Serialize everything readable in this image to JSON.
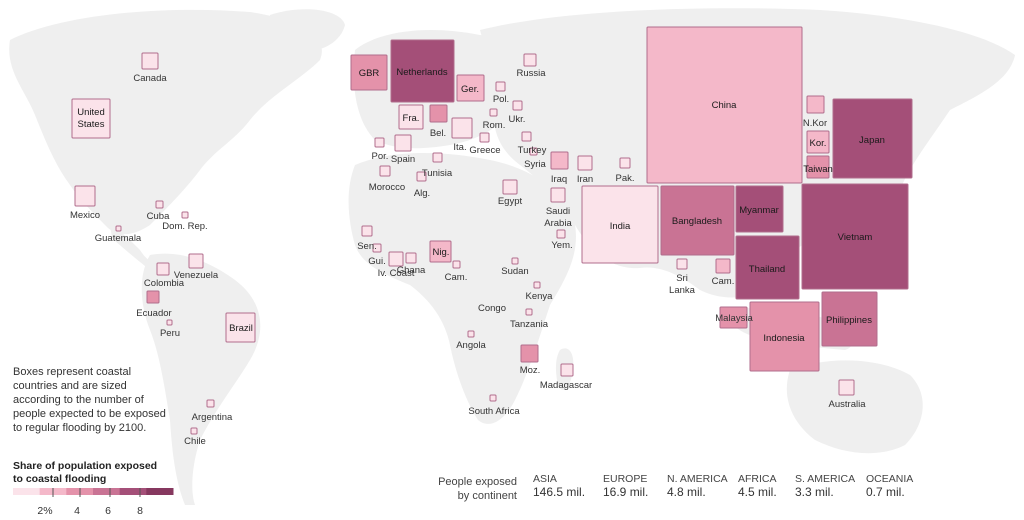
{
  "note": "Boxes represent coastal countries and are sized according to the number of people expected to be exposed to regular flooding by 2100.",
  "legend": {
    "title_line1": "Share of population exposed",
    "title_line2": "to coastal flooding",
    "ticks": [
      "2%",
      "4",
      "6",
      "8"
    ],
    "colors": [
      "#fbe3ea",
      "#f4b8c9",
      "#e492aa",
      "#c97394",
      "#a44f78",
      "#86385f"
    ]
  },
  "continents_label_line1": "People exposed",
  "continents_label_line2": "by continent",
  "continents": [
    {
      "name": "ASIA",
      "value": "146.5 mil."
    },
    {
      "name": "EUROPE",
      "value": "16.9 mil."
    },
    {
      "name": "N. AMERICA",
      "value": "4.8 mil."
    },
    {
      "name": "AFRICA",
      "value": "4.5 mil."
    },
    {
      "name": "S. AMERICA",
      "value": "3.3 mil."
    },
    {
      "name": "OCEANIA",
      "value": "0.7 mil."
    }
  ],
  "countries": [
    {
      "name": "China",
      "share_level": 1
    },
    {
      "name": "India",
      "share_level": 0
    },
    {
      "name": "Bangladesh",
      "share_level": 3
    },
    {
      "name": "Myanmar",
      "share_level": 4
    },
    {
      "name": "Thailand",
      "share_level": 4
    },
    {
      "name": "Vietnam",
      "share_level": 4
    },
    {
      "name": "Japan",
      "share_level": 4
    },
    {
      "name": "Indonesia",
      "share_level": 2
    },
    {
      "name": "Philippines",
      "share_level": 3
    },
    {
      "name": "Netherlands",
      "share_level": 4
    },
    {
      "name": "GBR",
      "share_level": 2
    },
    {
      "name": "Ger.",
      "share_level": 1
    },
    {
      "name": "Fra.",
      "share_level": 0
    },
    {
      "name": "Bel.",
      "share_level": 2
    },
    {
      "name": "Ita.",
      "share_level": 0
    },
    {
      "name": "Nig.",
      "share_level": 1
    },
    {
      "name": "Brazil",
      "share_level": 0
    },
    {
      "name": "United States",
      "share_level": 0
    },
    {
      "name": "Malaysia",
      "share_level": 2
    },
    {
      "name": "Kor.",
      "share_level": 1
    },
    {
      "name": "Taiwan",
      "share_level": 2
    },
    {
      "name": "N.Kor",
      "share_level": 1
    },
    {
      "name": "Cam.",
      "share_level": 1
    },
    {
      "name": "Egypt",
      "share_level": 0
    },
    {
      "name": "Iraq",
      "share_level": 1
    },
    {
      "name": "Iran",
      "share_level": 0
    },
    {
      "name": "Mexico",
      "share_level": 0
    },
    {
      "name": "Canada",
      "share_level": 0
    },
    {
      "name": "Russia",
      "share_level": 0
    },
    {
      "name": "Pol.",
      "share_level": 0
    },
    {
      "name": "Rom.",
      "share_level": 0
    },
    {
      "name": "Ukr.",
      "share_level": 0
    },
    {
      "name": "Greece",
      "share_level": 0
    },
    {
      "name": "Turkey",
      "share_level": 0
    },
    {
      "name": "Syria",
      "share_level": 0
    },
    {
      "name": "Pak.",
      "share_level": 0
    },
    {
      "name": "Saudi Arabia",
      "share_level": 0
    },
    {
      "name": "Yem.",
      "share_level": 0
    },
    {
      "name": "Por.",
      "share_level": 0
    },
    {
      "name": "Spain",
      "share_level": 0
    },
    {
      "name": "Morocco",
      "share_level": 0
    },
    {
      "name": "Tunisia",
      "share_level": 0
    },
    {
      "name": "Alg.",
      "share_level": 0
    },
    {
      "name": "Sen.",
      "share_level": 0
    },
    {
      "name": "Gui.",
      "share_level": 0
    },
    {
      "name": "Iv. Coast",
      "share_level": 0
    },
    {
      "name": "Ghana",
      "share_level": 0
    },
    {
      "name": "Cam. (Africa)",
      "share_level": 0
    },
    {
      "name": "Sudan",
      "share_level": 0
    },
    {
      "name": "Kenya",
      "share_level": 0
    },
    {
      "name": "Congo",
      "share_level": 0
    },
    {
      "name": "Tanzania",
      "share_level": 0
    },
    {
      "name": "Angola",
      "share_level": 0
    },
    {
      "name": "Moz.",
      "share_level": 2
    },
    {
      "name": "Madagascar",
      "share_level": 0
    },
    {
      "name": "South Africa",
      "share_level": 0
    },
    {
      "name": "Cuba",
      "share_level": 0
    },
    {
      "name": "Dom. Rep.",
      "share_level": 0
    },
    {
      "name": "Guatemala",
      "share_level": 0
    },
    {
      "name": "Venezuela",
      "share_level": 0
    },
    {
      "name": "Colombia",
      "share_level": 0
    },
    {
      "name": "Ecuador",
      "share_level": 2
    },
    {
      "name": "Peru",
      "share_level": 0
    },
    {
      "name": "Argentina",
      "share_level": 0
    },
    {
      "name": "Chile",
      "share_level": 0
    },
    {
      "name": "Sri Lanka",
      "share_level": 0
    },
    {
      "name": "Australia",
      "share_level": 0
    }
  ]
}
